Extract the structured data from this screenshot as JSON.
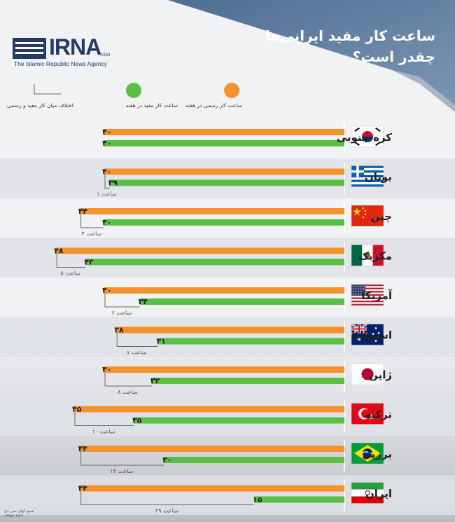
{
  "logo": {
    "name": "IRNA",
    "year": "1934",
    "subtitle": "The Islamic Republic News Agency"
  },
  "title": {
    "line1": "ساعت کار مفید ایرانی‌ها",
    "line2": "چقدر است؟"
  },
  "legend": {
    "official": "ساعت کار رسمی در هفته",
    "useful": "ساعت کار مفید در هفته",
    "difference": "اختلاف میان کار مفید و رسمی"
  },
  "colors": {
    "official": "#f5922a",
    "useful": "#5cbf45",
    "difference": "#666666",
    "title_bg": "#5c7c9e",
    "band": "#dfe2e6"
  },
  "source": {
    "line1": "منبع: اوای سی دی",
    "line2": "۱۳۹۸/۰۹/۲۶"
  },
  "chart_data": {
    "type": "bar",
    "orientation": "horizontal",
    "categories": [
      "کره جنوبی",
      "یونان",
      "چین",
      "مکزیک",
      "آمریکا",
      "استرالیا",
      "ژاپن",
      "ترکیه",
      "برزیل",
      "ایران"
    ],
    "flags": [
      "south-korea-flag",
      "greece-flag",
      "china-flag",
      "mexico-flag",
      "usa-flag",
      "australia-flag",
      "japan-flag",
      "turkey-flag",
      "brazil-flag",
      "iran-flag"
    ],
    "series": [
      {
        "name": "ساعت کار رسمی در هفته",
        "values": [
          40,
          40,
          44,
          48,
          40,
          38,
          40,
          45,
          44,
          44
        ],
        "labels": [
          "۴۰",
          "۴۰",
          "۴۴",
          "۴۸",
          "۴۰",
          "۳۸",
          "۴۰",
          "۴۵",
          "۴۴",
          "۴۴"
        ]
      },
      {
        "name": "ساعت کار مفید در هفته",
        "values": [
          40,
          39,
          40,
          43,
          34,
          31,
          32,
          35,
          30,
          15
        ],
        "labels": [
          "۴۰",
          "۳۹",
          "۴۰",
          "۴۳",
          "۳۴",
          "۳۱",
          "۳۲",
          "۳۵",
          "۳۰",
          "۱۵"
        ]
      }
    ],
    "differences": [
      0,
      1,
      4,
      5,
      6,
      7,
      8,
      10,
      14,
      29
    ],
    "difference_labels": [
      "",
      "۱ ساعت",
      "۴ ساعت",
      "۵ ساعت",
      "۶ ساعت",
      "۷ ساعت",
      "۸ ساعت",
      "۱۰ ساعت",
      "۱۴ ساعت",
      "۲۹ ساعت"
    ],
    "direction": "right-to-left",
    "xlim": [
      0,
      50
    ]
  }
}
